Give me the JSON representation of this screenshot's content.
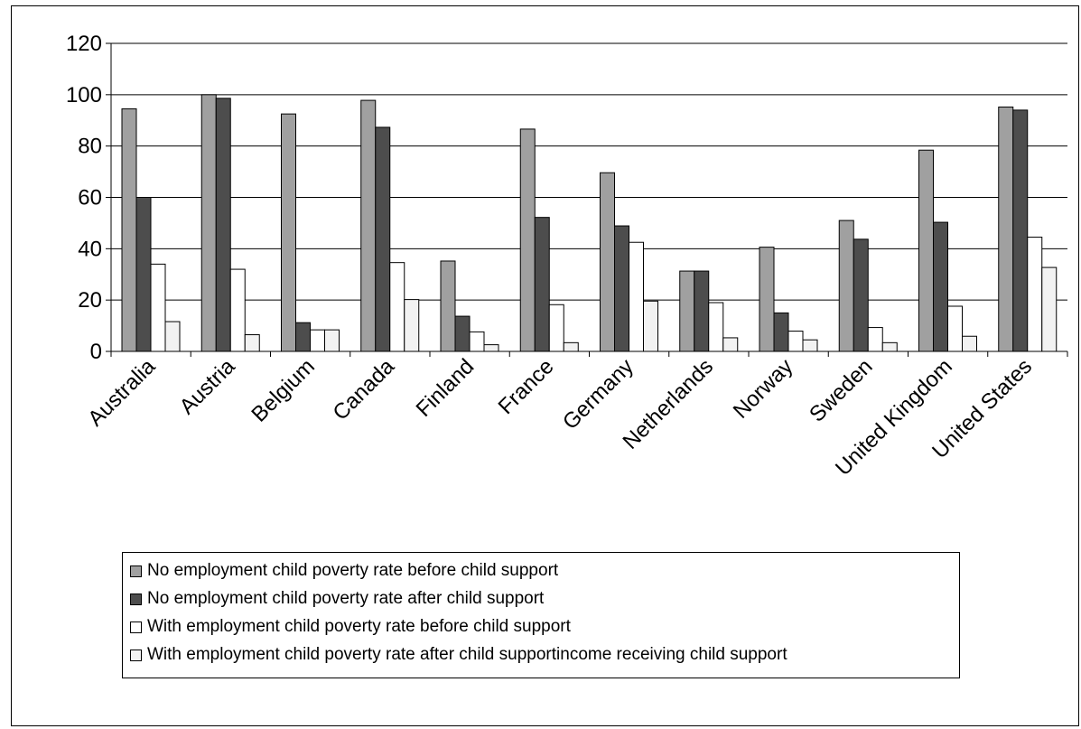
{
  "chart_data": {
    "type": "bar",
    "categories": [
      "Australia",
      "Austria",
      "Belgium",
      "Canada",
      "Finland",
      "France",
      "Germany",
      "Netherlands",
      "Norway",
      "Sweden",
      "United Kingdom",
      "United States"
    ],
    "series": [
      {
        "name": "No employment child poverty rate before child support",
        "color": "#a0a0a0",
        "values": [
          94.5,
          100,
          92.5,
          97.8,
          35.2,
          86.6,
          69.6,
          31.3,
          40.6,
          51,
          78.4,
          95.2
        ]
      },
      {
        "name": "No employment child poverty rate after child support",
        "color": "#4d4d4d",
        "values": [
          60,
          98.6,
          11.2,
          87.3,
          13.7,
          52.2,
          48.9,
          31.3,
          15,
          43.7,
          50.3,
          94
        ]
      },
      {
        "name": "With employment child poverty rate before child support",
        "color": "#ffffff",
        "values": [
          34,
          32,
          8.4,
          34.6,
          7.6,
          18.2,
          42.5,
          19,
          7.9,
          9.3,
          17.6,
          44.5
        ]
      },
      {
        "name": "With employment child poverty rate after child supportincome receiving child support",
        "color": "#f2f2f2",
        "values": [
          11.6,
          6.5,
          8.4,
          20.2,
          2.6,
          3.4,
          19.6,
          5.3,
          4.5,
          3.4,
          5.9,
          32.7
        ]
      }
    ],
    "title": "",
    "xlabel": "",
    "ylabel": "",
    "ylim": [
      0,
      120
    ],
    "yticks": [
      "0",
      "20",
      "40",
      "60",
      "80",
      "100",
      "120"
    ],
    "grid": true,
    "legend_position": "bottom"
  }
}
